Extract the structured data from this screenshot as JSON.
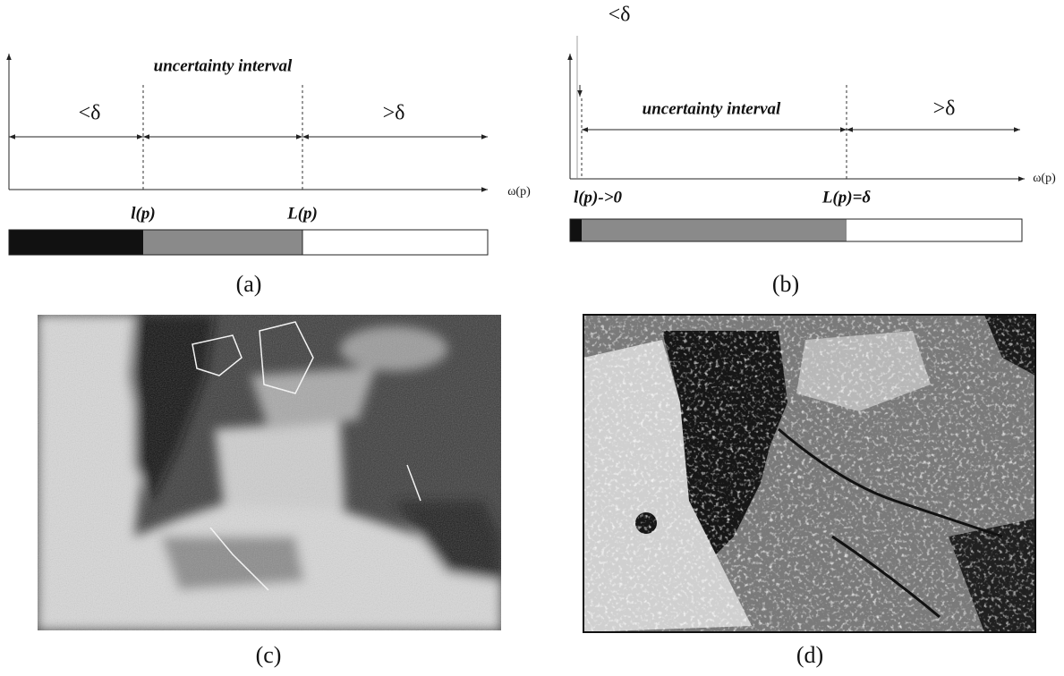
{
  "panel_a": {
    "title": "uncertainty interval",
    "left": "<δ",
    "right": ">δ",
    "x_axis": "ω(p)",
    "lower": "l(p)",
    "upper": "L(p)",
    "caption": "(a)"
  },
  "panel_b": {
    "top": "<δ",
    "title": "uncertainty interval",
    "right": ">δ",
    "x_axis": "ω(p)",
    "lower": "l(p)->0",
    "upper": "L(p)=δ",
    "caption": "(b)"
  },
  "panel_c": {
    "caption": "(c)"
  },
  "panel_d": {
    "caption": "(d)"
  }
}
